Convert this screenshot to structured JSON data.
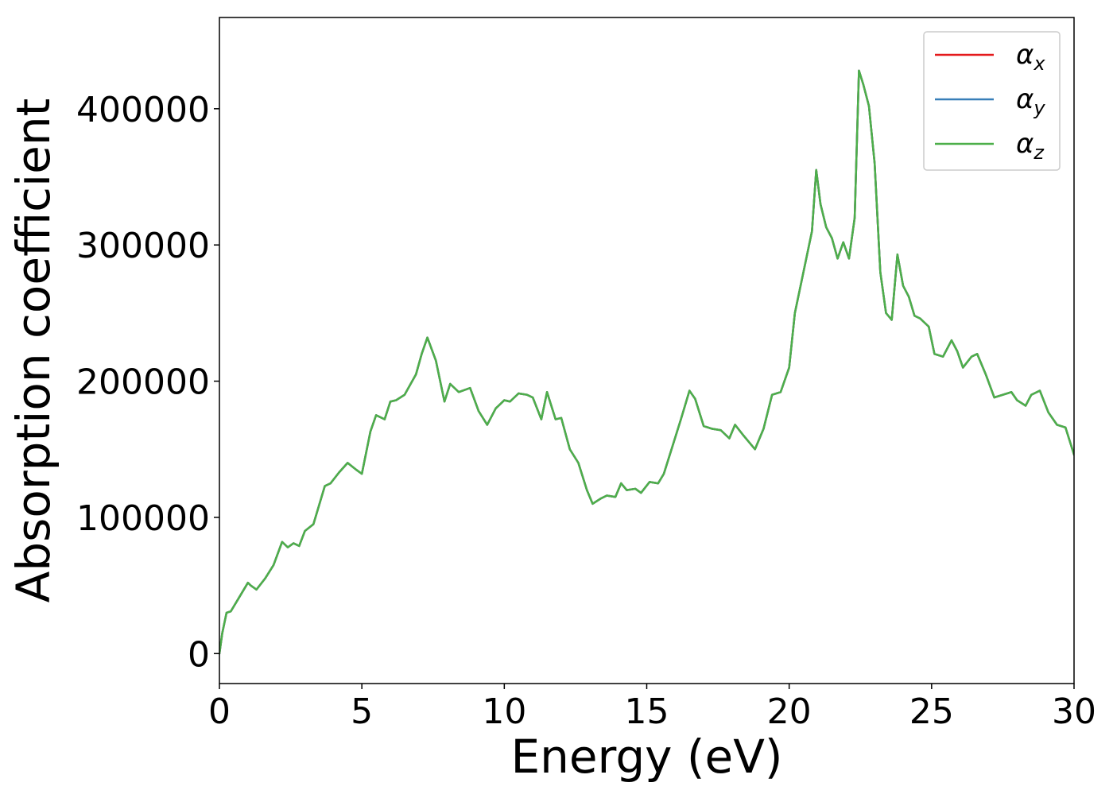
{
  "chart_data": {
    "type": "line",
    "xlabel": "Energy (eV)",
    "ylabel": "Absorption coefficient",
    "xlim": [
      0,
      30
    ],
    "ylim": [
      -22000,
      467000
    ],
    "xticks": [
      0,
      5,
      10,
      15,
      20,
      25,
      30
    ],
    "xtick_labels": [
      "0",
      "5",
      "10",
      "15",
      "20",
      "25",
      "30"
    ],
    "yticks": [
      0,
      100000,
      200000,
      300000,
      400000
    ],
    "ytick_labels": [
      "0",
      "100000",
      "200000",
      "300000",
      "400000"
    ],
    "grid": false,
    "legend_position": "upper right",
    "series": [
      {
        "name": "α",
        "subscript": "x",
        "color": "#e41a1c",
        "x": [
          0,
          0.1,
          0.25,
          0.4,
          0.6,
          0.8,
          1.0,
          1.1,
          1.3,
          1.6,
          1.9,
          2.2,
          2.4,
          2.6,
          2.8,
          3.0,
          3.3,
          3.7,
          3.9,
          4.2,
          4.5,
          4.8,
          5.0,
          5.3,
          5.5,
          5.8,
          6.0,
          6.2,
          6.5,
          6.9,
          7.1,
          7.3,
          7.6,
          7.9,
          8.1,
          8.4,
          8.8,
          9.1,
          9.4,
          9.7,
          10.0,
          10.2,
          10.5,
          10.8,
          11.0,
          11.3,
          11.5,
          11.8,
          12.0,
          12.3,
          12.6,
          12.9,
          13.1,
          13.4,
          13.6,
          13.9,
          14.1,
          14.3,
          14.6,
          14.8,
          15.1,
          15.4,
          15.6,
          15.9,
          16.2,
          16.5,
          16.7,
          17.0,
          17.3,
          17.6,
          17.9,
          18.1,
          18.4,
          18.8,
          19.1,
          19.4,
          19.7,
          20.0,
          20.2,
          20.5,
          20.8,
          20.95,
          21.1,
          21.3,
          21.5,
          21.7,
          21.9,
          22.1,
          22.3,
          22.45,
          22.6,
          22.8,
          23.0,
          23.2,
          23.4,
          23.6,
          23.8,
          24.0,
          24.2,
          24.4,
          24.6,
          24.9,
          25.1,
          25.4,
          25.7,
          25.9,
          26.1,
          26.4,
          26.6,
          26.9,
          27.2,
          27.5,
          27.8,
          28.0,
          28.3,
          28.5,
          28.8,
          29.1,
          29.4,
          29.7,
          30.0
        ],
        "y": [
          0,
          15000,
          30000,
          31000,
          38000,
          45000,
          52000,
          50000,
          47000,
          55000,
          65000,
          82000,
          78000,
          81000,
          79000,
          90000,
          95000,
          123000,
          125000,
          133000,
          140000,
          135000,
          132000,
          163000,
          175000,
          172000,
          185000,
          186000,
          190000,
          205000,
          220000,
          232000,
          215000,
          185000,
          198000,
          192000,
          195000,
          178000,
          168000,
          180000,
          186000,
          185000,
          191000,
          190000,
          188000,
          172000,
          192000,
          172000,
          173000,
          150000,
          140000,
          120000,
          110000,
          114000,
          116000,
          115000,
          125000,
          120000,
          121000,
          118000,
          126000,
          125000,
          132000,
          152000,
          172000,
          193000,
          187000,
          167000,
          165000,
          164000,
          158000,
          168000,
          160000,
          150000,
          165000,
          190000,
          192000,
          210000,
          250000,
          280000,
          310000,
          355000,
          330000,
          313000,
          305000,
          290000,
          302000,
          290000,
          320000,
          428000,
          418000,
          402000,
          360000,
          280000,
          250000,
          245000,
          293000,
          270000,
          262000,
          248000,
          246000,
          240000,
          220000,
          218000,
          230000,
          222000,
          210000,
          218000,
          220000,
          205000,
          188000,
          190000,
          192000,
          186000,
          182000,
          190000,
          193000,
          177000,
          168000,
          166000,
          146000
        ]
      },
      {
        "name": "α",
        "subscript": "y",
        "color": "#377eb8",
        "x": [
          0,
          0.1,
          0.25,
          0.4,
          0.6,
          0.8,
          1.0,
          1.1,
          1.3,
          1.6,
          1.9,
          2.2,
          2.4,
          2.6,
          2.8,
          3.0,
          3.3,
          3.7,
          3.9,
          4.2,
          4.5,
          4.8,
          5.0,
          5.3,
          5.5,
          5.8,
          6.0,
          6.2,
          6.5,
          6.9,
          7.1,
          7.3,
          7.6,
          7.9,
          8.1,
          8.4,
          8.8,
          9.1,
          9.4,
          9.7,
          10.0,
          10.2,
          10.5,
          10.8,
          11.0,
          11.3,
          11.5,
          11.8,
          12.0,
          12.3,
          12.6,
          12.9,
          13.1,
          13.4,
          13.6,
          13.9,
          14.1,
          14.3,
          14.6,
          14.8,
          15.1,
          15.4,
          15.6,
          15.9,
          16.2,
          16.5,
          16.7,
          17.0,
          17.3,
          17.6,
          17.9,
          18.1,
          18.4,
          18.8,
          19.1,
          19.4,
          19.7,
          20.0,
          20.2,
          20.5,
          20.8,
          20.95,
          21.1,
          21.3,
          21.5,
          21.7,
          21.9,
          22.1,
          22.3,
          22.45,
          22.6,
          22.8,
          23.0,
          23.2,
          23.4,
          23.6,
          23.8,
          24.0,
          24.2,
          24.4,
          24.6,
          24.9,
          25.1,
          25.4,
          25.7,
          25.9,
          26.1,
          26.4,
          26.6,
          26.9,
          27.2,
          27.5,
          27.8,
          28.0,
          28.3,
          28.5,
          28.8,
          29.1,
          29.4,
          29.7,
          30.0
        ],
        "y": [
          0,
          15000,
          30000,
          31000,
          38000,
          45000,
          52000,
          50000,
          47000,
          55000,
          65000,
          82000,
          78000,
          81000,
          79000,
          90000,
          95000,
          123000,
          125000,
          133000,
          140000,
          135000,
          132000,
          163000,
          175000,
          172000,
          185000,
          186000,
          190000,
          205000,
          220000,
          232000,
          215000,
          185000,
          198000,
          192000,
          195000,
          178000,
          168000,
          180000,
          186000,
          185000,
          191000,
          190000,
          188000,
          172000,
          192000,
          172000,
          173000,
          150000,
          140000,
          120000,
          110000,
          114000,
          116000,
          115000,
          125000,
          120000,
          121000,
          118000,
          126000,
          125000,
          132000,
          152000,
          172000,
          193000,
          187000,
          167000,
          165000,
          164000,
          158000,
          168000,
          160000,
          150000,
          165000,
          190000,
          192000,
          210000,
          250000,
          280000,
          310000,
          355000,
          330000,
          313000,
          305000,
          290000,
          302000,
          290000,
          320000,
          428000,
          418000,
          402000,
          360000,
          280000,
          250000,
          245000,
          293000,
          270000,
          262000,
          248000,
          246000,
          240000,
          220000,
          218000,
          230000,
          222000,
          210000,
          218000,
          220000,
          205000,
          188000,
          190000,
          192000,
          186000,
          182000,
          190000,
          193000,
          177000,
          168000,
          166000,
          146000
        ]
      },
      {
        "name": "α",
        "subscript": "z",
        "color": "#4daf4a",
        "x": [
          0,
          0.1,
          0.25,
          0.4,
          0.6,
          0.8,
          1.0,
          1.1,
          1.3,
          1.6,
          1.9,
          2.2,
          2.4,
          2.6,
          2.8,
          3.0,
          3.3,
          3.7,
          3.9,
          4.2,
          4.5,
          4.8,
          5.0,
          5.3,
          5.5,
          5.8,
          6.0,
          6.2,
          6.5,
          6.9,
          7.1,
          7.3,
          7.6,
          7.9,
          8.1,
          8.4,
          8.8,
          9.1,
          9.4,
          9.7,
          10.0,
          10.2,
          10.5,
          10.8,
          11.0,
          11.3,
          11.5,
          11.8,
          12.0,
          12.3,
          12.6,
          12.9,
          13.1,
          13.4,
          13.6,
          13.9,
          14.1,
          14.3,
          14.6,
          14.8,
          15.1,
          15.4,
          15.6,
          15.9,
          16.2,
          16.5,
          16.7,
          17.0,
          17.3,
          17.6,
          17.9,
          18.1,
          18.4,
          18.8,
          19.1,
          19.4,
          19.7,
          20.0,
          20.2,
          20.5,
          20.8,
          20.95,
          21.1,
          21.3,
          21.5,
          21.7,
          21.9,
          22.1,
          22.3,
          22.45,
          22.6,
          22.8,
          23.0,
          23.2,
          23.4,
          23.6,
          23.8,
          24.0,
          24.2,
          24.4,
          24.6,
          24.9,
          25.1,
          25.4,
          25.7,
          25.9,
          26.1,
          26.4,
          26.6,
          26.9,
          27.2,
          27.5,
          27.8,
          28.0,
          28.3,
          28.5,
          28.8,
          29.1,
          29.4,
          29.7,
          30.0
        ],
        "y": [
          0,
          15000,
          30000,
          31000,
          38000,
          45000,
          52000,
          50000,
          47000,
          55000,
          65000,
          82000,
          78000,
          81000,
          79000,
          90000,
          95000,
          123000,
          125000,
          133000,
          140000,
          135000,
          132000,
          163000,
          175000,
          172000,
          185000,
          186000,
          190000,
          205000,
          220000,
          232000,
          215000,
          185000,
          198000,
          192000,
          195000,
          178000,
          168000,
          180000,
          186000,
          185000,
          191000,
          190000,
          188000,
          172000,
          192000,
          172000,
          173000,
          150000,
          140000,
          120000,
          110000,
          114000,
          116000,
          115000,
          125000,
          120000,
          121000,
          118000,
          126000,
          125000,
          132000,
          152000,
          172000,
          193000,
          187000,
          167000,
          165000,
          164000,
          158000,
          168000,
          160000,
          150000,
          165000,
          190000,
          192000,
          210000,
          250000,
          280000,
          310000,
          355000,
          330000,
          313000,
          305000,
          290000,
          302000,
          290000,
          320000,
          428000,
          418000,
          402000,
          360000,
          280000,
          250000,
          245000,
          293000,
          270000,
          262000,
          248000,
          246000,
          240000,
          220000,
          218000,
          230000,
          222000,
          210000,
          218000,
          220000,
          205000,
          188000,
          190000,
          192000,
          186000,
          182000,
          190000,
          193000,
          177000,
          168000,
          166000,
          146000
        ]
      }
    ]
  }
}
